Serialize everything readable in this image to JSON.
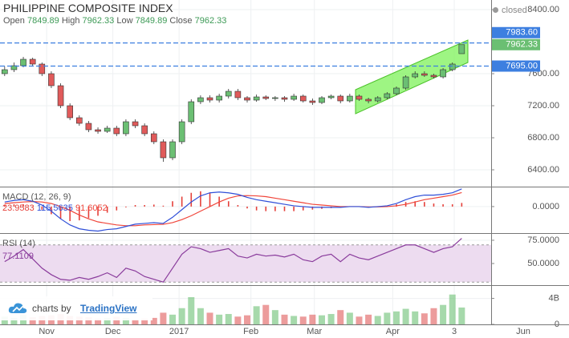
{
  "status": "closed",
  "branding": {
    "prefix": "charts by",
    "name": "TradingView"
  },
  "chart_data": [
    {
      "type": "candlestick",
      "title": "PHILIPPINE COMPOSITE INDEX",
      "ohlc_labels": [
        "Open",
        "High",
        "Low",
        "Close"
      ],
      "categories": [
        null,
        null,
        null,
        null,
        null,
        null,
        null,
        null,
        null,
        null,
        null,
        null,
        null,
        null,
        null,
        null,
        null,
        null,
        null,
        null,
        null,
        null,
        null,
        null,
        null,
        null,
        null,
        null,
        null,
        null,
        null,
        null,
        null,
        null,
        null,
        null,
        null,
        null,
        null,
        null,
        null,
        null,
        null,
        null,
        null,
        null,
        null,
        null,
        null,
        null
      ],
      "open": [
        7600,
        7650,
        7700,
        7780,
        7720,
        7600,
        7450,
        7200,
        7050,
        6980,
        6900,
        6880,
        6920,
        6850,
        7000,
        6950,
        6850,
        6750,
        6550,
        6750,
        7000,
        7250,
        7300,
        7270,
        7320,
        7380,
        7300,
        7270,
        7310,
        7290,
        7300,
        7280,
        7320,
        7260,
        7240,
        7300,
        7320,
        7260,
        7320,
        7280,
        7260,
        7300,
        7350,
        7420,
        7560,
        7600,
        7580,
        7560,
        7650,
        7849.89
      ],
      "high": [
        7690,
        7740,
        7810,
        7800,
        7740,
        7630,
        7480,
        7230,
        7080,
        7010,
        6930,
        6950,
        6950,
        7030,
        7030,
        6980,
        6880,
        6780,
        6780,
        7030,
        7280,
        7330,
        7330,
        7350,
        7410,
        7410,
        7320,
        7340,
        7330,
        7320,
        7320,
        7350,
        7340,
        7290,
        7320,
        7340,
        7340,
        7350,
        7340,
        7300,
        7320,
        7370,
        7440,
        7580,
        7630,
        7630,
        7600,
        7670,
        7740,
        7962.33
      ],
      "low": [
        7570,
        7620,
        7680,
        7690,
        7570,
        7420,
        7170,
        7020,
        6950,
        6870,
        6850,
        6860,
        6820,
        6820,
        6920,
        6820,
        6720,
        6500,
        6520,
        6720,
        6970,
        7220,
        7240,
        7240,
        7290,
        7270,
        7240,
        7250,
        7270,
        7260,
        7250,
        7260,
        7240,
        7210,
        7220,
        7280,
        7230,
        7240,
        7260,
        7230,
        7240,
        7280,
        7330,
        7400,
        7540,
        7560,
        7540,
        7540,
        7630,
        7849.89
      ],
      "close": [
        7650,
        7700,
        7780,
        7720,
        7600,
        7450,
        7200,
        7050,
        6980,
        6900,
        6880,
        6920,
        6850,
        7000,
        6950,
        6850,
        6750,
        6550,
        6750,
        7000,
        7250,
        7300,
        7270,
        7320,
        7380,
        7300,
        7270,
        7310,
        7290,
        7300,
        7280,
        7320,
        7260,
        7240,
        7300,
        7320,
        7260,
        7320,
        7280,
        7260,
        7300,
        7350,
        7420,
        7560,
        7600,
        7580,
        7560,
        7650,
        7720,
        7962.33
      ],
      "up_color": "#6bbf73",
      "down_color": "#e05a5a",
      "ylim": [
        6200,
        8520
      ],
      "yticks": [
        {
          "value": 8400,
          "label": "8400.00"
        },
        {
          "value": 7600,
          "label": "7600.00"
        },
        {
          "value": 7200,
          "label": "7200.00"
        },
        {
          "value": 6800,
          "label": "6800.00"
        },
        {
          "value": 6400,
          "label": "6400.00"
        }
      ],
      "hlines": [
        {
          "value": 7983.6,
          "label": "7983.60"
        },
        {
          "value": 7695,
          "label": "7695.00"
        }
      ],
      "hline_color": "#3d7fe0",
      "xlim": [
        -0.5,
        60.5
      ],
      "xticks": [
        {
          "value": 4.5,
          "label": "Nov"
        },
        {
          "value": 11.6,
          "label": "Dec"
        },
        {
          "value": 18.7,
          "label": "2017"
        },
        {
          "value": 26.4,
          "label": "Feb"
        },
        {
          "value": 33.2,
          "label": "Mar"
        },
        {
          "value": 41.6,
          "label": "Apr"
        },
        {
          "value": 48.2,
          "label": "3"
        },
        {
          "value": 55.6,
          "label": "Jun"
        }
      ],
      "grid": true
    },
    {
      "type": "macd",
      "title": "MACD (12, 26, 9)",
      "histogram": [
        10,
        15,
        15,
        2,
        -20,
        -50,
        -80,
        -95,
        -90,
        -75,
        -60,
        -40,
        -25,
        -5,
        10,
        10,
        13,
        6,
        35,
        65,
        90,
        100,
        90,
        65,
        35,
        10,
        -12,
        -25,
        -30,
        -30,
        -30,
        -30,
        -25,
        -20,
        -15,
        -10,
        -5,
        0,
        0,
        -3,
        2,
        5,
        15,
        30,
        35,
        30,
        20,
        15,
        15,
        23.9583
      ],
      "macd": [
        30,
        40,
        45,
        35,
        10,
        -30,
        -80,
        -120,
        -145,
        -155,
        -160,
        -150,
        -145,
        -130,
        -115,
        -110,
        -105,
        -110,
        -70,
        -20,
        30,
        70,
        90,
        95,
        90,
        80,
        60,
        45,
        35,
        25,
        15,
        5,
        0,
        -5,
        -5,
        -5,
        -5,
        0,
        0,
        -5,
        0,
        5,
        20,
        45,
        65,
        75,
        75,
        80,
        90,
        115.5635
      ],
      "signal": [
        20,
        25,
        30,
        33,
        30,
        20,
        0,
        -25,
        -55,
        -80,
        -100,
        -110,
        -120,
        -125,
        -125,
        -120,
        -118,
        -116,
        -105,
        -85,
        -60,
        -30,
        0,
        30,
        55,
        70,
        72,
        70,
        65,
        55,
        45,
        35,
        25,
        15,
        10,
        5,
        0,
        0,
        0,
        -2,
        -2,
        0,
        5,
        15,
        30,
        45,
        55,
        65,
        75,
        91.6052
      ],
      "histogram_color": "#e5403a",
      "macd_color": "#2f4fd8",
      "signal_color": "#f0453a",
      "ylim": [
        -168,
        120
      ],
      "yticks": [
        {
          "value": 0,
          "label": "0.0000"
        }
      ]
    },
    {
      "type": "line",
      "title": "RSI (14)",
      "values": [
        52,
        58,
        65,
        55,
        45,
        38,
        33,
        32,
        35,
        33,
        36,
        40,
        35,
        45,
        42,
        36,
        33,
        30,
        45,
        60,
        68,
        66,
        62,
        64,
        66,
        58,
        56,
        60,
        58,
        59,
        57,
        60,
        54,
        52,
        58,
        60,
        52,
        60,
        56,
        54,
        58,
        62,
        66,
        70,
        70,
        66,
        62,
        66,
        68,
        77.1109
      ],
      "color": "#8a3c9c",
      "band_color": "#eddcf0",
      "levels": [
        70,
        30
      ],
      "ylim": [
        27.6,
        81
      ],
      "yticks": [
        {
          "value": 75,
          "label": "75.0000"
        },
        {
          "value": 50,
          "label": "50.0000"
        }
      ]
    },
    {
      "type": "bar",
      "values": [
        1.2,
        1.0,
        1.5,
        1.1,
        1.3,
        1.4,
        1.6,
        1.3,
        1.2,
        1.1,
        0.9,
        1.0,
        1.2,
        1.0,
        0.8,
        0.9,
        1.0,
        1.8,
        1.5,
        2.5,
        4.2,
        2.5,
        1.8,
        1.5,
        1.6,
        1.2,
        1.4,
        2.8,
        3.0,
        2.2,
        1.5,
        1.3,
        1.2,
        1.5,
        1.4,
        1.6,
        2.2,
        1.8,
        1.2,
        1.5,
        1.3,
        1.8,
        2.0,
        2.4,
        2.0,
        1.7,
        2.5,
        3.0,
        4.6,
        2.6
      ],
      "ylim": [
        0,
        5.8
      ],
      "yticks": [
        0,
        {
          "value": 4,
          "label": "4B"
        }
      ]
    }
  ]
}
